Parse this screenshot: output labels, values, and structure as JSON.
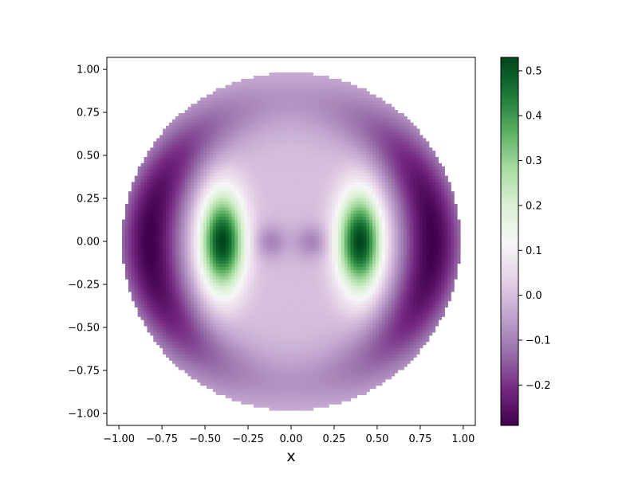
{
  "chart_data": {
    "type": "heatmap",
    "title": "",
    "xlabel": "x",
    "ylabel": "",
    "xlim": [
      -1.07,
      1.07
    ],
    "ylim": [
      -1.07,
      1.07
    ],
    "x_ticks": [
      "−1.00",
      "−0.75",
      "−0.50",
      "−0.25",
      "0.00",
      "0.25",
      "0.50",
      "0.75",
      "1.00"
    ],
    "y_ticks": [
      "1.00",
      "0.75",
      "0.50",
      "0.25",
      "0.00",
      "−0.25",
      "−0.50",
      "−0.75",
      "−1.00"
    ],
    "x_tick_values": [
      -1.0,
      -0.75,
      -0.5,
      -0.25,
      0.0,
      0.25,
      0.5,
      0.75,
      1.0
    ],
    "y_tick_values": [
      1.0,
      0.75,
      0.5,
      0.25,
      0.0,
      -0.25,
      -0.5,
      -0.75,
      -1.0
    ],
    "domain": "unit disk",
    "colormap": "PRGn",
    "colorbar": {
      "vmin": -0.29,
      "vmax": 0.53,
      "ticks": [
        "0.5",
        "0.4",
        "0.3",
        "0.2",
        "0.1",
        "0.0",
        "−0.1",
        "−0.2"
      ],
      "tick_values": [
        0.5,
        0.4,
        0.3,
        0.2,
        0.1,
        0.0,
        -0.1,
        -0.2
      ]
    },
    "features": [
      {
        "type": "positive-lobe",
        "x": 0.4,
        "y": 0.0,
        "value": 0.53
      },
      {
        "type": "positive-lobe",
        "x": -0.4,
        "y": 0.0,
        "value": 0.53
      },
      {
        "type": "negative-ring",
        "r": 0.82,
        "value": -0.29
      },
      {
        "type": "inner-dip",
        "x": 0.12,
        "y": 0.0,
        "value": -0.1
      },
      {
        "type": "inner-dip",
        "x": -0.12,
        "y": 0.0,
        "value": -0.1
      }
    ],
    "grid": false
  }
}
